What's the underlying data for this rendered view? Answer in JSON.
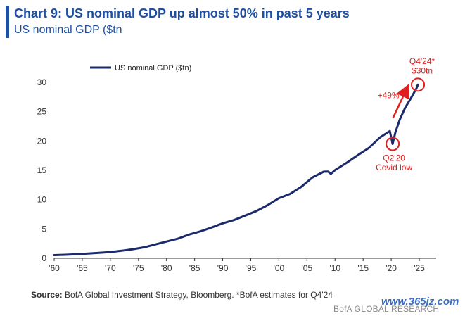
{
  "header": {
    "title": "Chart 9: US nominal GDP up almost 50% in past 5 years",
    "subtitle": "US nominal GDP ($tn"
  },
  "footer": {
    "source_label": "Source:",
    "source_text": " BofA Global Investment Strategy, Bloomberg. *BofA estimates for Q4'24",
    "branding": "BofA GLOBAL RESEARCH",
    "watermark": "www.365jz.com"
  },
  "colors": {
    "line": "#1b2a6b",
    "annotation": "#e02020",
    "title": "#1f4fa3"
  },
  "chart_data": {
    "type": "line",
    "title": "Chart 9: US nominal GDP up almost 50% in past 5 years",
    "subtitle": "US nominal GDP ($tn",
    "xlabel": "",
    "ylabel": "",
    "xlim": [
      1960,
      2028
    ],
    "ylim": [
      0,
      30
    ],
    "x_ticks": [
      1960,
      1965,
      1970,
      1975,
      1980,
      1985,
      1990,
      1995,
      2000,
      2005,
      2010,
      2015,
      2020,
      2025
    ],
    "x_tick_labels": [
      "'60",
      "'65",
      "'70",
      "'75",
      "'80",
      "'85",
      "'90",
      "'95",
      "'00",
      "'05",
      "'10",
      "'15",
      "'20",
      "'25"
    ],
    "y_ticks": [
      0,
      5,
      10,
      15,
      20,
      25,
      30
    ],
    "y_tick_labels": [
      "0",
      "5",
      "10",
      "15",
      "20",
      "25",
      "30"
    ],
    "grid": false,
    "legend_position": "top-left",
    "series": [
      {
        "name": "US nominal GDP ($tn)",
        "x": [
          1960,
          1962,
          1964,
          1966,
          1968,
          1970,
          1972,
          1974,
          1976,
          1978,
          1980,
          1982,
          1984,
          1986,
          1988,
          1990,
          1992,
          1994,
          1996,
          1998,
          2000,
          2002,
          2004,
          2006,
          2008,
          2008.75,
          2009.25,
          2010,
          2012,
          2014,
          2016,
          2018,
          2019.75,
          2020.25,
          2020.75,
          2021.5,
          2022.5,
          2023.5,
          2024.5,
          2024.75
        ],
        "y": [
          0.54,
          0.6,
          0.69,
          0.81,
          0.94,
          1.07,
          1.28,
          1.55,
          1.87,
          2.36,
          2.86,
          3.34,
          4.04,
          4.58,
          5.24,
          5.96,
          6.52,
          7.29,
          8.07,
          9.06,
          10.25,
          10.98,
          12.2,
          13.8,
          14.77,
          14.8,
          14.4,
          15.05,
          16.25,
          17.55,
          18.8,
          20.6,
          21.7,
          19.5,
          21.5,
          23.6,
          25.7,
          27.3,
          29.0,
          29.6
        ]
      }
    ],
    "annotations": [
      {
        "text": "+49%",
        "x": 2019.5,
        "y": 27.3
      },
      {
        "text": "Q4'24*",
        "x": 2025.5,
        "y": 33.1
      },
      {
        "text": "$30tn",
        "x": 2025.5,
        "y": 31.5
      },
      {
        "text": "Q2'20",
        "x": 2020.5,
        "y": 16.6
      },
      {
        "text": "Covid low",
        "x": 2020.5,
        "y": 15.0
      }
    ],
    "highlight_points": [
      {
        "x": 2020.25,
        "y": 19.5
      },
      {
        "x": 2024.75,
        "y": 29.6
      }
    ],
    "arrow": {
      "from": [
        2020.3,
        23.9
      ],
      "to": [
        2022.9,
        29.2
      ]
    }
  }
}
